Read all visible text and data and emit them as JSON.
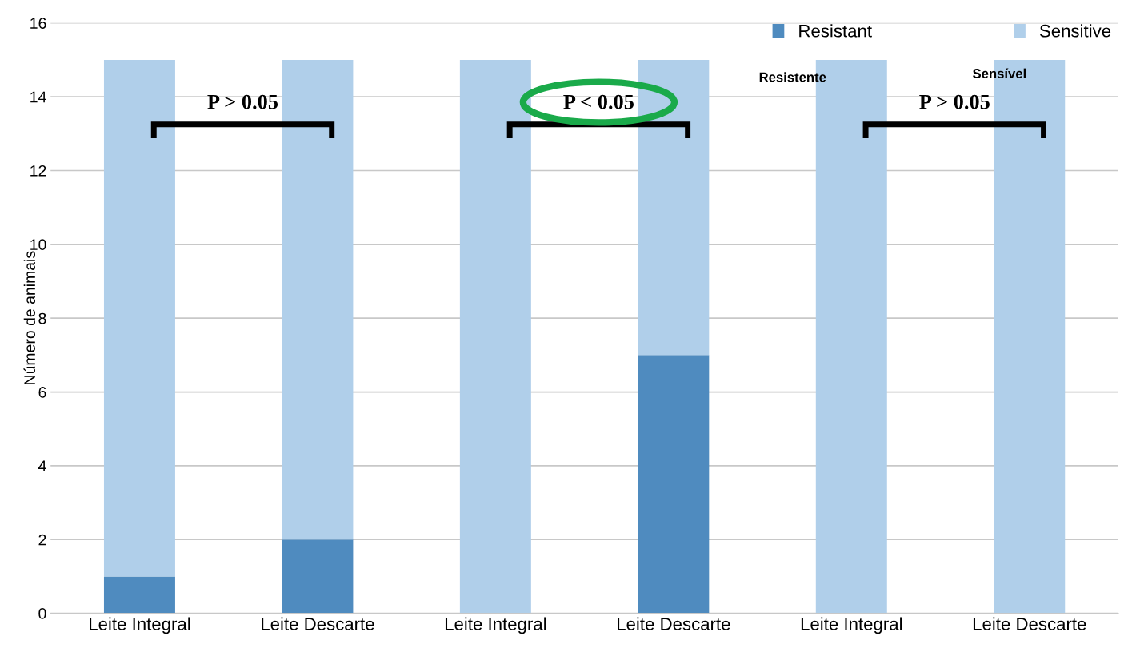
{
  "chart_data": {
    "type": "bar",
    "stacked": true,
    "ylabel": "Número de animais",
    "categories": [
      "Leite Integral",
      "Leite Descarte",
      "Leite Integral",
      "Leite Descarte",
      "Leite Integral",
      "Leite Descarte"
    ],
    "series": [
      {
        "name": "Resistant",
        "color": "#4f8bbf",
        "values": [
          1,
          2,
          0,
          7,
          0,
          0
        ]
      },
      {
        "name": "Sensitive",
        "color": "#b0cfea",
        "values": [
          14,
          13,
          15,
          8,
          15,
          15
        ]
      }
    ],
    "ylim": [
      0,
      16
    ],
    "yticks": [
      0,
      2,
      4,
      6,
      8,
      10,
      12,
      14,
      16
    ],
    "grid": "y",
    "legend": "top right",
    "annotations": [
      "P > 0.05",
      "P < 0.05",
      "P > 0.05",
      "Resistente",
      "Sensível"
    ]
  }
}
